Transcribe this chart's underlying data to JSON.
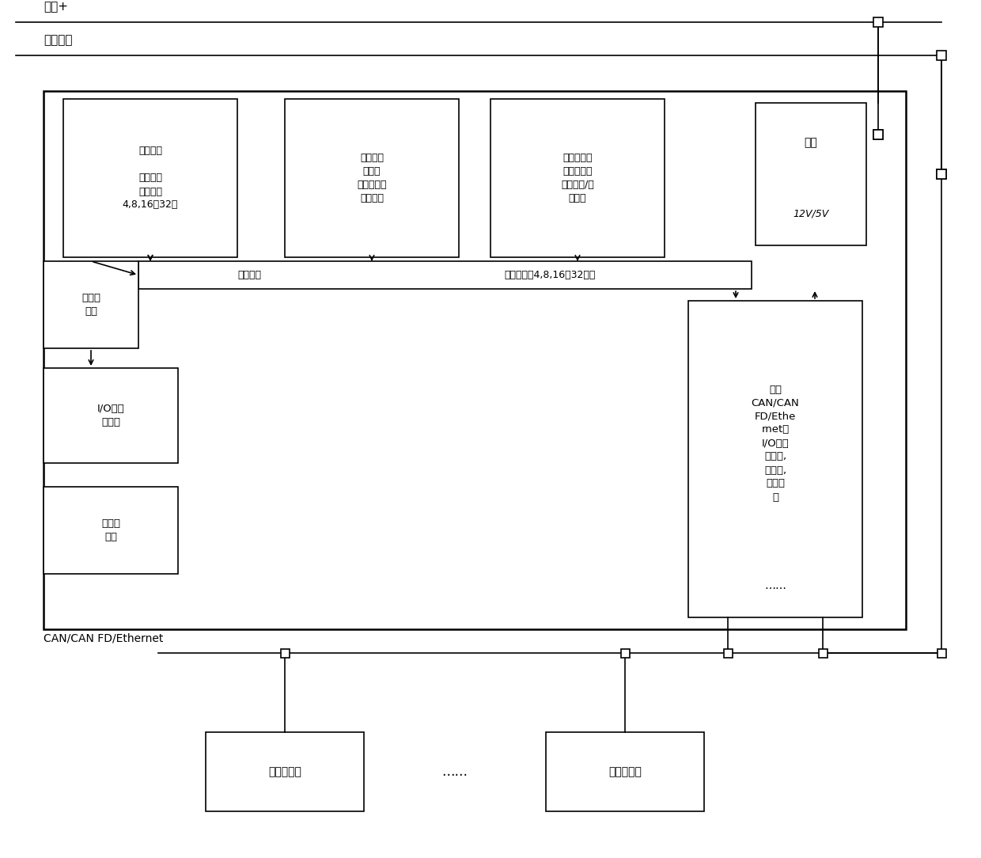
{
  "fig_width": 12.4,
  "fig_height": 10.84,
  "bg_color": "#ffffff",
  "line_color": "#000000",
  "power_plus_label": "电源+",
  "power_gnd_label": "电源接地",
  "mcu_label": "微处理器\n\n控制单元\n算术单元\n4,8,16或32位",
  "prog_mem_label": "程序数据\n存储器\n非易失性只\n读存储器",
  "data_mem_label": "数据存储器\n非易失性或\n易失性读/写\n存储器",
  "power_box_label": "电源",
  "power_box_sublabel": "12V/5V",
  "clock_label": "时钟发\n生器",
  "bus_left_label": "总线系统",
  "bus_right_label": "数据连接，4,8,16或32位宽",
  "io_ctrl_label": "I/O中断\n控制器",
  "watchdog_label": "看门狗\n模块",
  "io_bus_label": "用于\nCAN/CAN\nFD/Ethe\nrnet的\nI/O总线\n控制器,\n收发器,\n接口电\n路",
  "can_label": "CAN/CAN FD/Ethernet",
  "sensor_label": "智能传感器",
  "actuator_label": "智能执行器",
  "dots_bottom": "……",
  "dots_iobus": "……"
}
